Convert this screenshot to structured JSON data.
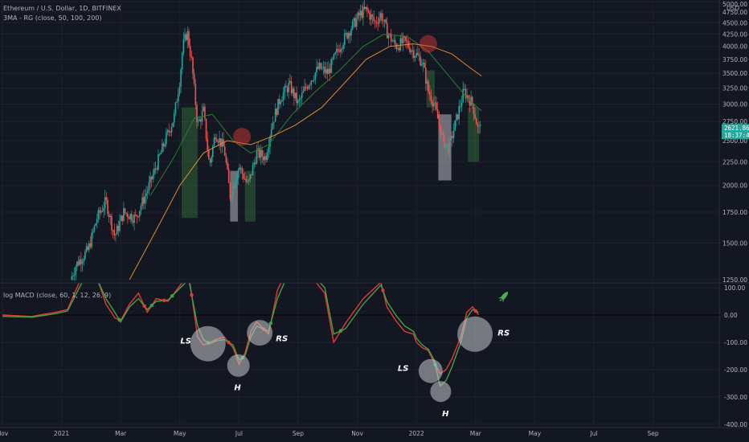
{
  "header": {
    "symbol_line": "Ethereum / U.S. Dollar, 1D, BITFINEX",
    "indicator_line": "3MA - RG (close, 50, 100, 200)",
    "currency": "USD",
    "macd_label": "log MACD (close, 60, 1, 12, 26, 9)"
  },
  "colors": {
    "background": "#131722",
    "bull": "#26a69a",
    "bear": "#ef5350",
    "ma_green": "#2e7d32",
    "ma_orange": "#e08a2c",
    "macd_red": "#e53935",
    "macd_green": "#43a047",
    "current_price_badge": "#26a69a"
  },
  "current_price": {
    "price": "2621.86",
    "countdown": "18:37:47",
    "value": 2621.86
  },
  "chart_data": [
    {
      "type": "candlestick",
      "ylim": [
        1250,
        5000
      ],
      "yticks": [
        {
          "value": 5000,
          "label": "5000.00"
        },
        {
          "value": 4750,
          "label": "4750.00"
        },
        {
          "value": 4500,
          "label": "4500.00"
        },
        {
          "value": 4250,
          "label": "4250.00"
        },
        {
          "value": 4000,
          "label": "4000.00"
        },
        {
          "value": 3750,
          "label": "3750.00"
        },
        {
          "value": 3500,
          "label": "3500.00"
        },
        {
          "value": 3250,
          "label": "3250.00"
        },
        {
          "value": 3000,
          "label": "3000.00"
        },
        {
          "value": 2750,
          "label": "2750.00"
        },
        {
          "value": 2500,
          "label": "2500.00"
        },
        {
          "value": 2250,
          "label": "2250.00"
        },
        {
          "value": 2000,
          "label": "2000.00"
        },
        {
          "value": 1750,
          "label": "1750.00"
        },
        {
          "value": 1500,
          "label": "1500.00"
        },
        {
          "value": 1250,
          "label": "1250.00"
        }
      ],
      "xticks": [
        {
          "t": 0,
          "label": "Nov"
        },
        {
          "t": 2,
          "label": "2021"
        },
        {
          "t": 4,
          "label": "Mar"
        },
        {
          "t": 6,
          "label": "May"
        },
        {
          "t": 8,
          "label": "Jul"
        },
        {
          "t": 10,
          "label": "Sep"
        },
        {
          "t": 12,
          "label": "Nov"
        },
        {
          "t": 14,
          "label": "2022"
        },
        {
          "t": 16,
          "label": "Mar"
        },
        {
          "t": 18,
          "label": "May"
        },
        {
          "t": 20,
          "label": "Jul"
        },
        {
          "t": 22,
          "label": "Sep"
        }
      ],
      "price_path": [
        [
          2.3,
          1250
        ],
        [
          2.5,
          1350
        ],
        [
          2.9,
          1450
        ],
        [
          3.2,
          1700
        ],
        [
          3.5,
          1850
        ],
        [
          3.8,
          1550
        ],
        [
          4.1,
          1750
        ],
        [
          4.5,
          1700
        ],
        [
          4.9,
          1950
        ],
        [
          5.2,
          2200
        ],
        [
          5.5,
          2500
        ],
        [
          5.8,
          2800
        ],
        [
          6.0,
          3400
        ],
        [
          6.1,
          4000
        ],
        [
          6.25,
          4300
        ],
        [
          6.4,
          3700
        ],
        [
          6.6,
          2700
        ],
        [
          6.8,
          2900
        ],
        [
          7.0,
          2200
        ],
        [
          7.2,
          2600
        ],
        [
          7.5,
          2400
        ],
        [
          7.7,
          1900
        ],
        [
          8.0,
          2200
        ],
        [
          8.3,
          2000
        ],
        [
          8.6,
          2350
        ],
        [
          8.9,
          2300
        ],
        [
          9.1,
          2700
        ],
        [
          9.4,
          3100
        ],
        [
          9.7,
          3300
        ],
        [
          10.0,
          3000
        ],
        [
          10.3,
          3300
        ],
        [
          10.7,
          3600
        ],
        [
          11.0,
          3500
        ],
        [
          11.4,
          4000
        ],
        [
          11.8,
          4400
        ],
        [
          12.1,
          4700
        ],
        [
          12.3,
          4800
        ],
        [
          12.6,
          4500
        ],
        [
          12.8,
          4700
        ],
        [
          13.0,
          4300
        ],
        [
          13.3,
          4000
        ],
        [
          13.6,
          4100
        ],
        [
          13.9,
          3900
        ],
        [
          14.2,
          3700
        ],
        [
          14.4,
          3200
        ],
        [
          14.6,
          3000
        ],
        [
          14.9,
          2500
        ],
        [
          15.1,
          2400
        ],
        [
          15.3,
          2700
        ],
        [
          15.6,
          3200
        ],
        [
          15.9,
          3000
        ],
        [
          16.1,
          2600
        ],
        [
          16.2,
          2900
        ]
      ],
      "series": [
        {
          "name": "MA 50",
          "color": "#2e7d32",
          "points": [
            [
              5.0,
              1900
            ],
            [
              5.8,
              2300
            ],
            [
              6.5,
              2800
            ],
            [
              7.1,
              2850
            ],
            [
              7.8,
              2500
            ],
            [
              8.4,
              2350
            ],
            [
              9.0,
              2450
            ],
            [
              9.8,
              2850
            ],
            [
              10.6,
              3200
            ],
            [
              11.4,
              3550
            ],
            [
              12.2,
              4000
            ],
            [
              12.9,
              4250
            ],
            [
              13.7,
              4200
            ],
            [
              14.4,
              3900
            ],
            [
              15.1,
              3450
            ],
            [
              15.7,
              3100
            ],
            [
              16.2,
              2900
            ]
          ]
        },
        {
          "name": "MA 100",
          "color": "#e08a2c",
          "points": [
            [
              4.3,
              1250
            ],
            [
              5.2,
              1600
            ],
            [
              6.0,
              2000
            ],
            [
              6.8,
              2350
            ],
            [
              7.6,
              2500
            ],
            [
              8.4,
              2450
            ],
            [
              9.1,
              2550
            ],
            [
              9.9,
              2700
            ],
            [
              10.8,
              2950
            ],
            [
              11.6,
              3350
            ],
            [
              12.3,
              3750
            ],
            [
              13.1,
              4000
            ],
            [
              13.9,
              4050
            ],
            [
              14.5,
              4000
            ],
            [
              15.2,
              3850
            ],
            [
              15.8,
              3600
            ],
            [
              16.2,
              3450
            ]
          ]
        }
      ],
      "rectangles": [
        {
          "type": "green",
          "t0": 6.06,
          "t1": 6.6,
          "lo": 1700,
          "hi": 2950
        },
        {
          "type": "gray",
          "t0": 7.7,
          "t1": 7.96,
          "lo": 1670,
          "hi": 2150
        },
        {
          "type": "green",
          "t0": 8.2,
          "t1": 8.56,
          "lo": 1670,
          "hi": 2150
        },
        {
          "type": "green",
          "t0": 14.34,
          "t1": 14.62,
          "lo": 2950,
          "hi": 3550
        },
        {
          "type": "gray",
          "t0": 14.74,
          "t1": 15.18,
          "lo": 2050,
          "hi": 2850
        },
        {
          "type": "green",
          "t0": 15.74,
          "t1": 16.12,
          "lo": 2250,
          "hi": 2950
        }
      ],
      "markers": [
        {
          "t": 8.1,
          "price": 2550
        },
        {
          "t": 14.4,
          "price": 4050
        }
      ]
    },
    {
      "type": "line",
      "title": "log MACD (close, 60, 1, 12, 26, 9)",
      "ylim": [
        -400,
        100
      ],
      "yticks": [
        {
          "value": 100,
          "label": "100.00"
        },
        {
          "value": 0,
          "label": "0.00"
        },
        {
          "value": -100,
          "label": "-100.00"
        },
        {
          "value": -200,
          "label": "-200.00"
        },
        {
          "value": -300,
          "label": "-300.00"
        },
        {
          "value": -400,
          "label": "-400.00"
        }
      ],
      "series": [
        {
          "name": "MACD",
          "color": "#e53935",
          "points": [
            [
              0,
              0
            ],
            [
              1.0,
              -5
            ],
            [
              1.8,
              10
            ],
            [
              2.2,
              20
            ],
            [
              2.6,
              120
            ],
            [
              3.0,
              200
            ],
            [
              3.5,
              40
            ],
            [
              3.8,
              -10
            ],
            [
              4.0,
              -20
            ],
            [
              4.3,
              40
            ],
            [
              4.6,
              80
            ],
            [
              4.9,
              10
            ],
            [
              5.2,
              60
            ],
            [
              5.6,
              50
            ],
            [
              6.3,
              150
            ],
            [
              6.6,
              -80
            ],
            [
              6.8,
              -110
            ],
            [
              7.0,
              -100
            ],
            [
              7.2,
              -90
            ],
            [
              7.5,
              -80
            ],
            [
              7.8,
              -120
            ],
            [
              8.0,
              -180
            ],
            [
              8.2,
              -140
            ],
            [
              8.4,
              -60
            ],
            [
              8.6,
              -25
            ],
            [
              9.0,
              -70
            ],
            [
              9.3,
              90
            ],
            [
              9.7,
              180
            ],
            [
              10.3,
              160
            ],
            [
              10.9,
              80
            ],
            [
              11.2,
              -100
            ],
            [
              11.6,
              -30
            ],
            [
              12.2,
              60
            ],
            [
              12.8,
              120
            ],
            [
              13.0,
              30
            ],
            [
              13.3,
              -20
            ],
            [
              13.6,
              -60
            ],
            [
              13.9,
              -70
            ],
            [
              14.0,
              -100
            ],
            [
              14.2,
              -120
            ],
            [
              14.4,
              -130
            ],
            [
              14.6,
              -175
            ],
            [
              14.8,
              -215
            ],
            [
              15.0,
              -200
            ],
            [
              15.2,
              -160
            ],
            [
              15.5,
              -80
            ],
            [
              15.7,
              10
            ],
            [
              15.9,
              30
            ],
            [
              16.1,
              0
            ]
          ]
        },
        {
          "name": "Signal",
          "color": "#43a047",
          "points": [
            [
              0,
              -5
            ],
            [
              1.0,
              -8
            ],
            [
              1.8,
              5
            ],
            [
              2.2,
              15
            ],
            [
              2.6,
              100
            ],
            [
              3.0,
              180
            ],
            [
              3.5,
              60
            ],
            [
              3.8,
              10
            ],
            [
              4.0,
              -25
            ],
            [
              4.3,
              30
            ],
            [
              4.6,
              60
            ],
            [
              4.9,
              20
            ],
            [
              5.2,
              50
            ],
            [
              5.6,
              55
            ],
            [
              6.3,
              130
            ],
            [
              6.6,
              -40
            ],
            [
              6.8,
              -90
            ],
            [
              7.0,
              -105
            ],
            [
              7.2,
              -95
            ],
            [
              7.5,
              -90
            ],
            [
              7.8,
              -110
            ],
            [
              8.0,
              -165
            ],
            [
              8.2,
              -150
            ],
            [
              8.4,
              -80
            ],
            [
              8.6,
              -40
            ],
            [
              9.0,
              -60
            ],
            [
              9.3,
              60
            ],
            [
              9.7,
              160
            ],
            [
              10.3,
              170
            ],
            [
              10.9,
              100
            ],
            [
              11.2,
              -70
            ],
            [
              11.6,
              -50
            ],
            [
              12.2,
              40
            ],
            [
              12.8,
              110
            ],
            [
              13.0,
              50
            ],
            [
              13.3,
              0
            ],
            [
              13.6,
              -40
            ],
            [
              13.9,
              -60
            ],
            [
              14.0,
              -85
            ],
            [
              14.2,
              -110
            ],
            [
              14.4,
              -125
            ],
            [
              14.6,
              -165
            ],
            [
              14.8,
              -260
            ],
            [
              15.0,
              -240
            ],
            [
              15.2,
              -190
            ],
            [
              15.5,
              -100
            ],
            [
              15.7,
              -10
            ],
            [
              15.9,
              20
            ],
            [
              16.1,
              10
            ]
          ]
        }
      ],
      "circles": [
        {
          "t": 6.95,
          "v": -105,
          "r": 22
        },
        {
          "t": 7.98,
          "v": -185,
          "r": 14
        },
        {
          "t": 8.7,
          "v": -65,
          "r": 16
        },
        {
          "t": 14.48,
          "v": -205,
          "r": 15
        },
        {
          "t": 14.82,
          "v": -280,
          "r": 13
        },
        {
          "t": 15.98,
          "v": -70,
          "r": 22
        }
      ],
      "pattern_labels": [
        {
          "text": "LS",
          "t": 6.2,
          "v": -105
        },
        {
          "text": "H",
          "t": 7.95,
          "v": -275
        },
        {
          "text": "RS",
          "t": 9.45,
          "v": -95
        },
        {
          "text": "LS",
          "t": 13.55,
          "v": -205
        },
        {
          "text": "H",
          "t": 14.98,
          "v": -370
        },
        {
          "text": "RS",
          "t": 16.95,
          "v": -75
        }
      ]
    }
  ]
}
